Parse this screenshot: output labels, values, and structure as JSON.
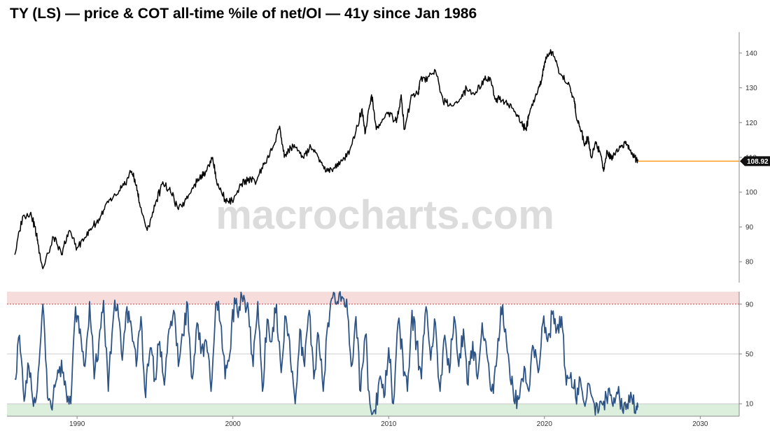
{
  "title": "TY (LS) — price & COT all-time %ile of net/OI — 41y since Jan 1986",
  "watermark": "macrocharts.com",
  "chart_data": [
    {
      "type": "line",
      "title": "TY (LS) — price & COT all-time %ile of net/OI — 41y since Jan 1986",
      "series": [],
      "x": [
        1986,
        1986.5,
        1987,
        1987.3,
        1987.5,
        1987.8,
        1988.5,
        1989,
        1989.5,
        1990,
        1990.5,
        1991,
        1991.5,
        1992,
        1992.5,
        1993,
        1993.5,
        1993.8,
        1994,
        1994.5,
        1995,
        1995.5,
        1996,
        1996.5,
        1997,
        1997.5,
        1998,
        1998.3,
        1998.7,
        1999,
        1999.5,
        2000,
        2000.5,
        2001,
        2001.5,
        2002,
        2002.5,
        2003,
        2003.3,
        2003.7,
        2004,
        2004.5,
        2005,
        2005.5,
        2006,
        2006.5,
        2007,
        2007.5,
        2008,
        2008.3,
        2008.5,
        2008.9,
        2009.2,
        2009.5,
        2010,
        2010.5,
        2010.8,
        2011,
        2011.5,
        2011.9,
        2012,
        2012.5,
        2013,
        2013.5,
        2014,
        2014.5,
        2015,
        2015.5,
        2016,
        2016.5,
        2016.9,
        2017,
        2017.5,
        2018,
        2018.5,
        2018.8,
        2019,
        2019.5,
        2019.8,
        2020,
        2020.3,
        2020.6,
        2021,
        2021.5,
        2021.9,
        2022,
        2022.3,
        2022.6,
        2022.8,
        2023,
        2023.3,
        2023.6,
        2023.8,
        2024,
        2024.3,
        2024.6,
        2024.9,
        2025.2,
        2025.5,
        2025.8,
        2026
      ],
      "values": [
        82,
        93,
        94,
        90,
        85,
        78,
        87,
        82,
        89,
        84,
        87,
        90,
        93,
        97,
        99,
        102,
        106,
        102,
        97,
        89,
        96,
        103,
        100,
        95,
        98,
        102,
        105,
        106,
        110,
        102,
        98,
        97,
        102,
        104,
        103,
        108,
        112,
        119,
        110,
        113,
        113,
        110,
        113,
        110,
        106,
        107,
        109,
        112,
        119,
        124,
        117,
        128,
        118,
        120,
        123,
        120,
        128,
        118,
        128,
        128,
        132,
        133,
        135,
        126,
        125,
        126,
        130,
        128,
        132,
        133,
        126,
        127,
        126,
        124,
        120,
        118,
        122,
        128,
        132,
        137,
        140,
        139,
        134,
        131,
        127,
        123,
        118,
        114,
        116,
        110,
        114,
        111,
        106,
        112,
        110,
        112,
        113,
        114,
        112,
        110,
        108.92
      ],
      "last_value_label": "108.92",
      "ylim": [
        74,
        146
      ],
      "yticks": [
        80,
        90,
        100,
        110,
        120,
        130,
        140
      ],
      "xlim": [
        1985.5,
        2032.5
      ],
      "colors": {
        "line": "#000000",
        "last_value": "#ff8c00"
      },
      "grid": false
    },
    {
      "type": "line",
      "series": [],
      "x": [
        1986,
        1986.3,
        1986.6,
        1986.9,
        1987.2,
        1987.5,
        1987.8,
        1988.1,
        1988.4,
        1988.7,
        1989,
        1989.3,
        1989.6,
        1989.9,
        1990.2,
        1990.5,
        1990.8,
        1991.1,
        1991.4,
        1991.7,
        1992,
        1992.3,
        1992.6,
        1992.9,
        1993.2,
        1993.5,
        1993.8,
        1994.1,
        1994.4,
        1994.7,
        1995,
        1995.3,
        1995.6,
        1995.9,
        1996.2,
        1996.5,
        1996.8,
        1997.1,
        1997.4,
        1997.7,
        1998,
        1998.3,
        1998.6,
        1998.9,
        1999.2,
        1999.5,
        1999.8,
        2000.1,
        2000.4,
        2000.7,
        2001,
        2001.3,
        2001.6,
        2001.9,
        2002.2,
        2002.5,
        2002.8,
        2003.1,
        2003.4,
        2003.7,
        2004,
        2004.3,
        2004.6,
        2004.9,
        2005.2,
        2005.5,
        2005.8,
        2006.1,
        2006.4,
        2006.7,
        2007,
        2007.3,
        2007.6,
        2007.9,
        2008.2,
        2008.5,
        2008.8,
        2009.1,
        2009.4,
        2009.7,
        2010,
        2010.3,
        2010.6,
        2010.9,
        2011.2,
        2011.5,
        2011.8,
        2012.1,
        2012.4,
        2012.7,
        2013,
        2013.3,
        2013.6,
        2013.9,
        2014.2,
        2014.5,
        2014.8,
        2015.1,
        2015.4,
        2015.7,
        2016,
        2016.3,
        2016.6,
        2016.9,
        2017.2,
        2017.5,
        2017.8,
        2018.1,
        2018.4,
        2018.7,
        2019,
        2019.3,
        2019.6,
        2019.9,
        2020.2,
        2020.5,
        2020.8,
        2021.1,
        2021.4,
        2021.7,
        2022,
        2022.3,
        2022.6,
        2022.9,
        2023.2,
        2023.5,
        2023.8,
        2024.1,
        2024.4,
        2024.7,
        2025,
        2025.3,
        2025.6,
        2025.9,
        2026
      ],
      "values": [
        30,
        65,
        12,
        40,
        8,
        35,
        90,
        15,
        5,
        30,
        45,
        20,
        10,
        88,
        70,
        40,
        92,
        30,
        60,
        93,
        20,
        75,
        90,
        45,
        88,
        70,
        40,
        80,
        15,
        55,
        30,
        60,
        25,
        70,
        85,
        40,
        65,
        90,
        30,
        75,
        55,
        60,
        20,
        90,
        75,
        30,
        50,
        95,
        88,
        97,
        85,
        40,
        92,
        20,
        78,
        60,
        90,
        35,
        80,
        45,
        10,
        70,
        40,
        85,
        30,
        65,
        20,
        75,
        95,
        92,
        96,
        94,
        40,
        80,
        20,
        65,
        10,
        5,
        30,
        15,
        55,
        10,
        75,
        50,
        20,
        85,
        60,
        30,
        88,
        45,
        75,
        20,
        65,
        35,
        80,
        40,
        70,
        25,
        60,
        30,
        75,
        50,
        20,
        40,
        88,
        70,
        30,
        10,
        15,
        40,
        20,
        55,
        35,
        75,
        60,
        82,
        70,
        80,
        25,
        35,
        15,
        30,
        8,
        25,
        10,
        5,
        12,
        22,
        8,
        18,
        5,
        10,
        15,
        8,
        7
      ],
      "ylim": [
        0,
        100
      ],
      "yticks": [
        10,
        50,
        90
      ],
      "bands": [
        {
          "from": 90,
          "to": 100,
          "color": "#f7dcdc"
        },
        {
          "from": 0,
          "to": 10,
          "color": "#dcefdc"
        }
      ],
      "xticks": [
        1990,
        2000,
        2010,
        2020,
        2030
      ],
      "xlim": [
        1985.5,
        2032.5
      ],
      "colors": {
        "line": "#2e5486",
        "upper_band_line": "#d04040"
      },
      "grid": true
    }
  ]
}
